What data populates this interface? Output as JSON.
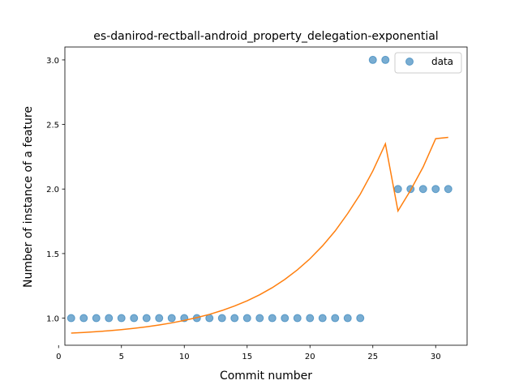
{
  "chart_data": {
    "type": "scatter",
    "title": "es-danirod-rectball-android_property_delegation-exponential",
    "xlabel": "Commit number",
    "ylabel": "Number of instance of a feature",
    "xlim": [
      0.5,
      32.5
    ],
    "ylim": [
      0.79,
      3.1
    ],
    "xticks": [
      0,
      5,
      10,
      15,
      20,
      25,
      30
    ],
    "yticks": [
      1.0,
      1.5,
      2.0,
      2.5,
      3.0
    ],
    "xtick_labels": [
      "0",
      "5",
      "10",
      "15",
      "20",
      "25",
      "30"
    ],
    "ytick_labels": [
      "1.0",
      "1.5",
      "2.0",
      "2.5",
      "3.0"
    ],
    "grid": false,
    "legend_position": "top-right",
    "series": [
      {
        "name": "data",
        "kind": "scatter",
        "color": "#1f77b4",
        "x": [
          1,
          2,
          3,
          4,
          5,
          6,
          7,
          8,
          9,
          10,
          11,
          12,
          13,
          14,
          15,
          16,
          17,
          18,
          19,
          20,
          21,
          22,
          23,
          24,
          25,
          26,
          27,
          28,
          29,
          30,
          31
        ],
        "y": [
          1,
          1,
          1,
          1,
          1,
          1,
          1,
          1,
          1,
          1,
          1,
          1,
          1,
          1,
          1,
          1,
          1,
          1,
          1,
          1,
          1,
          1,
          1,
          1,
          3,
          3,
          2,
          2,
          2,
          2,
          2
        ]
      },
      {
        "kind": "line",
        "color": "#ff7f0e",
        "x": [
          1,
          2,
          3,
          4,
          5,
          6,
          7,
          8,
          9,
          10,
          11,
          12,
          13,
          14,
          15,
          16,
          17,
          18,
          19,
          20,
          21,
          22,
          23,
          24,
          25,
          26,
          27,
          28,
          29,
          30,
          31
        ],
        "y": [
          0.884,
          0.889,
          0.895,
          0.902,
          0.911,
          0.921,
          0.933,
          0.947,
          0.963,
          0.982,
          1.004,
          1.029,
          1.059,
          1.094,
          1.134,
          1.181,
          1.236,
          1.3,
          1.374,
          1.46,
          1.56,
          1.675,
          1.81,
          1.96,
          2.14,
          2.35,
          1.83,
          1.99,
          2.17,
          2.39,
          2.4
        ]
      }
    ]
  }
}
